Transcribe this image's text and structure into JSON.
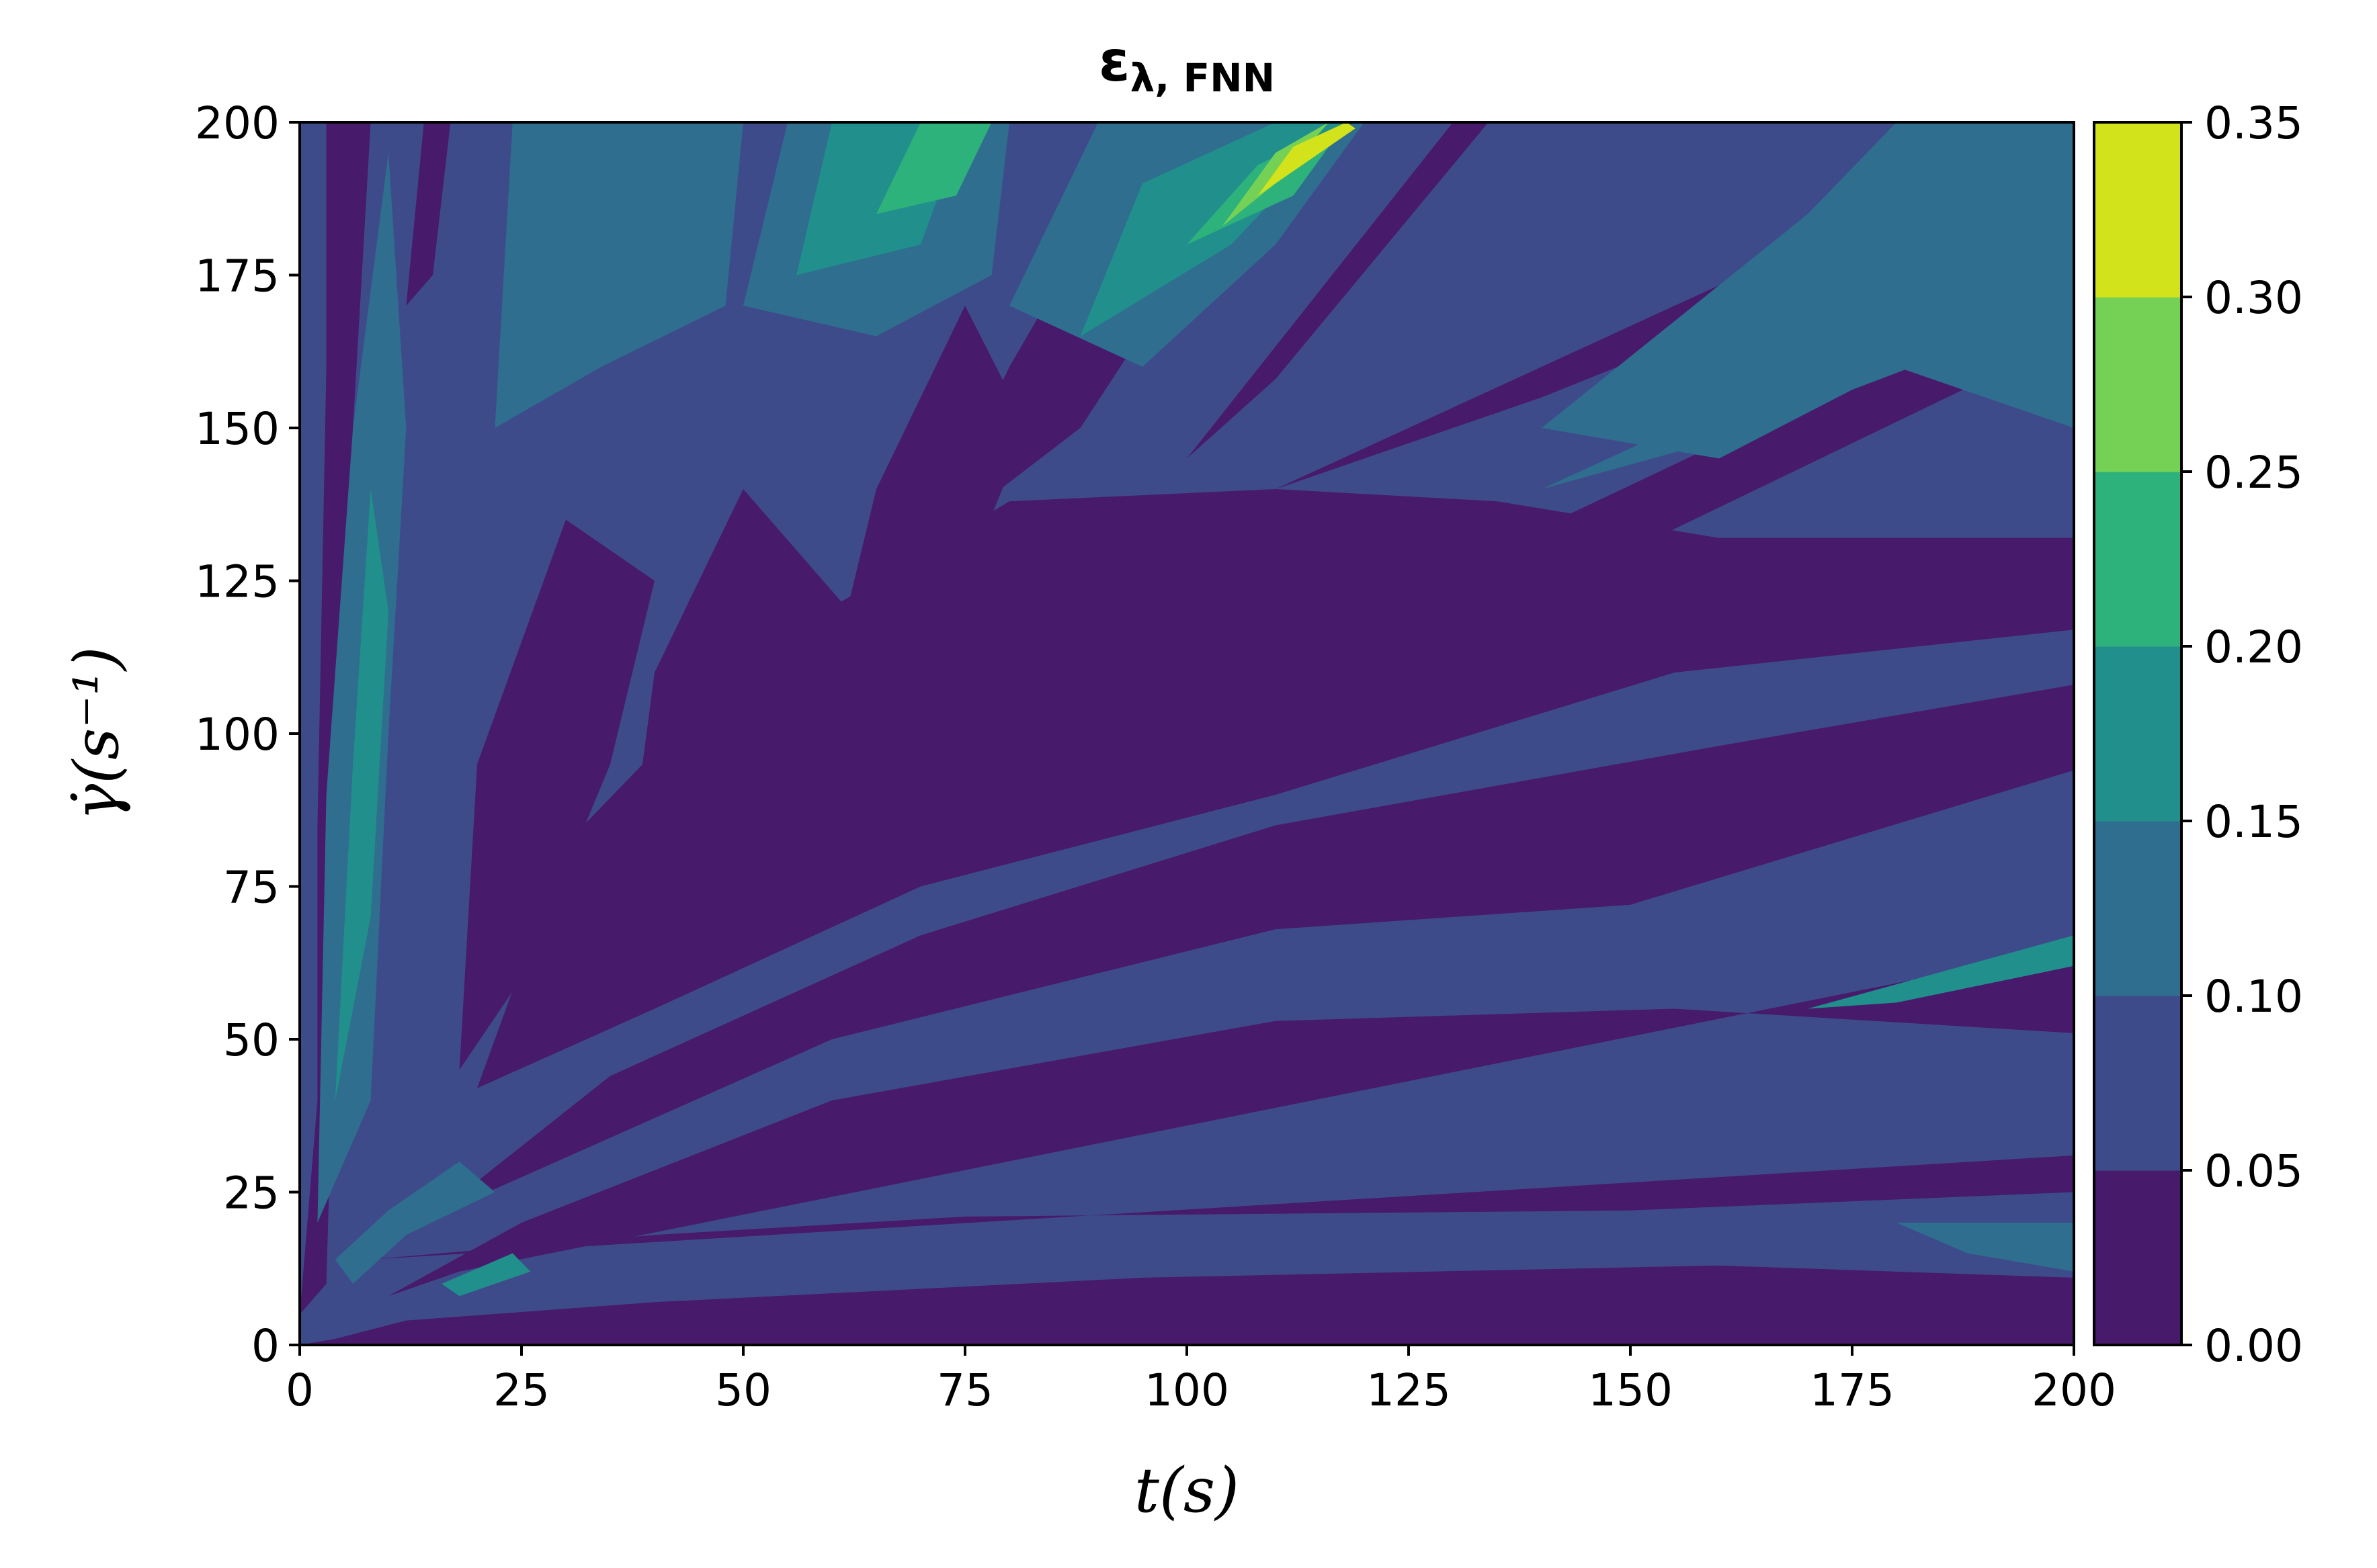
{
  "chart_data": {
    "type": "heatmap",
    "subtype": "filled-contour",
    "title": "ε",
    "title_subscript": "λ, FNN",
    "xlabel": "t(s)",
    "ylabel": "γ̇(s⁻¹)",
    "xlim": [
      0,
      200
    ],
    "ylim": [
      0,
      200
    ],
    "xticks": [
      "0",
      "25",
      "50",
      "75",
      "100",
      "125",
      "150",
      "175",
      "200"
    ],
    "yticks": [
      "0",
      "25",
      "50",
      "75",
      "100",
      "125",
      "150",
      "175",
      "200"
    ],
    "grid": false,
    "colorbar": {
      "levels": [
        0.0,
        0.05,
        0.1,
        0.15,
        0.2,
        0.25,
        0.3,
        0.35
      ],
      "tick_labels": [
        "0.00",
        "0.05",
        "0.10",
        "0.15",
        "0.20",
        "0.25",
        "0.30",
        "0.35"
      ],
      "colors": [
        "#471a6b",
        "#3e4b8a",
        "#2f6e8e",
        "#21908c",
        "#2eb27c",
        "#75d155",
        "#d2e21b"
      ]
    },
    "regions": [
      {
        "level": 1,
        "polygon": [
          [
            0,
            0
          ],
          [
            200,
            0
          ],
          [
            200,
            200
          ],
          [
            0,
            200
          ]
        ]
      },
      {
        "level": 0,
        "polygon": [
          [
            0,
            0
          ],
          [
            200,
            0
          ],
          [
            200,
            11
          ],
          [
            160,
            13
          ],
          [
            95,
            11
          ],
          [
            40,
            7
          ],
          [
            12,
            4
          ],
          [
            4,
            1
          ]
        ]
      },
      {
        "level": 0,
        "polygon": [
          [
            8,
            14
          ],
          [
            200,
            31
          ],
          [
            200,
            25
          ],
          [
            150,
            22
          ],
          [
            75,
            21
          ],
          [
            40,
            18
          ]
        ]
      },
      {
        "level": 0,
        "polygon": [
          [
            10,
            8
          ],
          [
            18,
            12
          ],
          [
            200,
            65
          ],
          [
            200,
            51
          ],
          [
            155,
            55
          ],
          [
            110,
            53
          ],
          [
            60,
            40
          ],
          [
            25,
            20
          ]
        ]
      },
      {
        "level": 0,
        "polygon": [
          [
            15,
            21
          ],
          [
            60,
            50
          ],
          [
            110,
            68
          ],
          [
            150,
            72
          ],
          [
            200,
            94
          ],
          [
            200,
            108
          ],
          [
            160,
            98
          ],
          [
            110,
            85
          ],
          [
            70,
            67
          ],
          [
            35,
            44
          ]
        ]
      },
      {
        "level": 0,
        "polygon": [
          [
            20,
            42
          ],
          [
            30,
            82
          ],
          [
            50,
            112
          ],
          [
            80,
            138
          ],
          [
            110,
            140
          ],
          [
            135,
            138
          ],
          [
            160,
            132
          ],
          [
            200,
            132
          ],
          [
            200,
            117
          ],
          [
            155,
            110
          ],
          [
            110,
            90
          ],
          [
            70,
            75
          ],
          [
            40,
            55
          ]
        ]
      },
      {
        "level": 0,
        "polygon": [
          [
            18,
            45
          ],
          [
            20,
            95
          ],
          [
            30,
            135
          ],
          [
            40,
            125
          ],
          [
            35,
            95
          ],
          [
            25,
            60
          ]
        ]
      },
      {
        "level": 0,
        "polygon": [
          [
            35,
            55
          ],
          [
            40,
            110
          ],
          [
            50,
            140
          ],
          [
            62,
            120
          ],
          [
            55,
            90
          ],
          [
            45,
            65
          ]
        ]
      },
      {
        "level": 0,
        "polygon": [
          [
            60,
            110
          ],
          [
            65,
            140
          ],
          [
            75,
            170
          ],
          [
            82,
            150
          ],
          [
            75,
            125
          ]
        ]
      },
      {
        "level": 0,
        "polygon": [
          [
            70,
            130
          ],
          [
            80,
            160
          ],
          [
            90,
            185
          ],
          [
            97,
            170
          ],
          [
            88,
            150
          ]
        ]
      },
      {
        "level": 0,
        "polygon": [
          [
            0,
            5
          ],
          [
            2,
            40
          ],
          [
            2,
            85
          ],
          [
            3,
            160
          ],
          [
            3,
            200
          ],
          [
            8,
            200
          ],
          [
            6,
            150
          ],
          [
            4,
            60
          ],
          [
            3,
            10
          ]
        ]
      },
      {
        "level": 0,
        "polygon": [
          [
            12,
            170
          ],
          [
            14,
            200
          ],
          [
            17,
            200
          ],
          [
            15,
            175
          ]
        ]
      },
      {
        "level": 0,
        "polygon": [
          [
            30,
            190
          ],
          [
            32,
            200
          ],
          [
            34,
            200
          ],
          [
            33,
            190
          ]
        ]
      },
      {
        "level": 0,
        "polygon": [
          [
            100,
            145
          ],
          [
            130,
            200
          ],
          [
            134,
            200
          ],
          [
            110,
            158
          ]
        ]
      },
      {
        "level": 0,
        "polygon": [
          [
            110,
            140
          ],
          [
            200,
            200
          ],
          [
            200,
            190
          ],
          [
            140,
            155
          ]
        ]
      },
      {
        "level": 0,
        "polygon": [
          [
            120,
            120
          ],
          [
            200,
            175
          ],
          [
            200,
            165
          ],
          [
            150,
            130
          ]
        ]
      },
      {
        "level": 2,
        "polygon": [
          [
            2,
            20
          ],
          [
            3,
            90
          ],
          [
            6,
            150
          ],
          [
            10,
            195
          ],
          [
            12,
            150
          ],
          [
            10,
            100
          ],
          [
            8,
            40
          ]
        ]
      },
      {
        "level": 2,
        "polygon": [
          [
            22,
            150
          ],
          [
            24,
            200
          ],
          [
            50,
            200
          ],
          [
            48,
            170
          ],
          [
            34,
            160
          ]
        ]
      },
      {
        "level": 2,
        "polygon": [
          [
            50,
            170
          ],
          [
            55,
            200
          ],
          [
            80,
            200
          ],
          [
            78,
            175
          ],
          [
            65,
            165
          ]
        ]
      },
      {
        "level": 2,
        "polygon": [
          [
            80,
            170
          ],
          [
            90,
            200
          ],
          [
            120,
            200
          ],
          [
            110,
            180
          ],
          [
            95,
            160
          ]
        ]
      },
      {
        "level": 2,
        "polygon": [
          [
            140,
            150
          ],
          [
            170,
            185
          ],
          [
            180,
            200
          ],
          [
            200,
            200
          ],
          [
            200,
            150
          ],
          [
            180,
            160
          ],
          [
            160,
            145
          ]
        ]
      },
      {
        "level": 2,
        "polygon": [
          [
            140,
            140
          ],
          [
            200,
            180
          ],
          [
            200,
            170
          ],
          [
            160,
            148
          ]
        ]
      },
      {
        "level": 2,
        "polygon": [
          [
            6,
            10
          ],
          [
            12,
            18
          ],
          [
            22,
            25
          ],
          [
            18,
            30
          ],
          [
            10,
            22
          ],
          [
            4,
            14
          ]
        ]
      },
      {
        "level": 2,
        "polygon": [
          [
            180,
            20
          ],
          [
            200,
            20
          ],
          [
            200,
            12
          ],
          [
            188,
            15
          ]
        ]
      },
      {
        "level": 3,
        "polygon": [
          [
            56,
            175
          ],
          [
            60,
            200
          ],
          [
            75,
            200
          ],
          [
            70,
            180
          ]
        ]
      },
      {
        "level": 3,
        "polygon": [
          [
            88,
            165
          ],
          [
            95,
            190
          ],
          [
            110,
            200
          ],
          [
            118,
            200
          ],
          [
            105,
            180
          ]
        ]
      },
      {
        "level": 3,
        "polygon": [
          [
            4,
            40
          ],
          [
            6,
            95
          ],
          [
            8,
            140
          ],
          [
            10,
            120
          ],
          [
            8,
            70
          ]
        ]
      },
      {
        "level": 3,
        "polygon": [
          [
            16,
            10
          ],
          [
            24,
            15
          ],
          [
            26,
            12
          ],
          [
            18,
            8
          ]
        ]
      },
      {
        "level": 3,
        "polygon": [
          [
            170,
            55
          ],
          [
            200,
            67
          ],
          [
            200,
            62
          ],
          [
            180,
            56
          ]
        ]
      },
      {
        "level": 4,
        "polygon": [
          [
            65,
            185
          ],
          [
            70,
            200
          ],
          [
            78,
            200
          ],
          [
            74,
            188
          ]
        ]
      },
      {
        "level": 4,
        "polygon": [
          [
            100,
            180
          ],
          [
            108,
            193
          ],
          [
            118,
            200
          ],
          [
            112,
            188
          ]
        ]
      },
      {
        "level": 5,
        "polygon": [
          [
            104,
            183
          ],
          [
            110,
            195
          ],
          [
            116,
            200
          ],
          [
            110,
            190
          ]
        ]
      },
      {
        "level": 6,
        "polygon": [
          [
            108,
            188
          ],
          [
            112,
            196
          ],
          [
            118,
            200
          ],
          [
            119,
            199
          ]
        ]
      }
    ]
  }
}
